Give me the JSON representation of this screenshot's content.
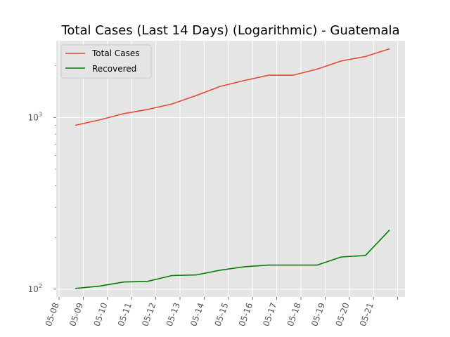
{
  "chart_data": {
    "type": "line",
    "title": "Total Cases (Last 14 Days) (Logarithmic) - Guatemala",
    "xlabel": "",
    "ylabel": "",
    "y_scale": "log",
    "ylim": [
      90,
      2800
    ],
    "grid": true,
    "legend_placement": "top-left",
    "x_tick_labels": [
      "05-08",
      "05-09",
      "05-10",
      "05-11",
      "05-12",
      "05-13",
      "05-14",
      "05-15",
      "05-16",
      "05-17",
      "05-18",
      "05-19",
      "05-20",
      "05-21"
    ],
    "y_tick_labels": [
      {
        "value": 1000,
        "base": "10",
        "exp": "3"
      },
      {
        "value": 100,
        "base": "10",
        "exp": "2"
      }
    ],
    "x": [
      "05-08 16:00",
      "05-09 16:00",
      "05-10 16:00",
      "05-11 16:00",
      "05-12 16:00",
      "05-13 16:00",
      "05-14 16:00",
      "05-15 16:00",
      "05-16 16:00",
      "05-17 16:00",
      "05-18 16:00",
      "05-19 16:00",
      "05-20 16:00",
      "05-21 16:00"
    ],
    "series": [
      {
        "name": "Total Cases",
        "color": "#e24a33",
        "values": [
          900,
          967,
          1052,
          1114,
          1199,
          1342,
          1518,
          1643,
          1763,
          1763,
          1912,
          2133,
          2265,
          2512
        ]
      },
      {
        "name": "Recovered",
        "color": "#008000",
        "values": [
          101,
          104,
          110,
          111,
          120,
          121,
          129,
          135,
          138,
          138,
          138,
          154,
          157,
          221
        ]
      }
    ]
  }
}
